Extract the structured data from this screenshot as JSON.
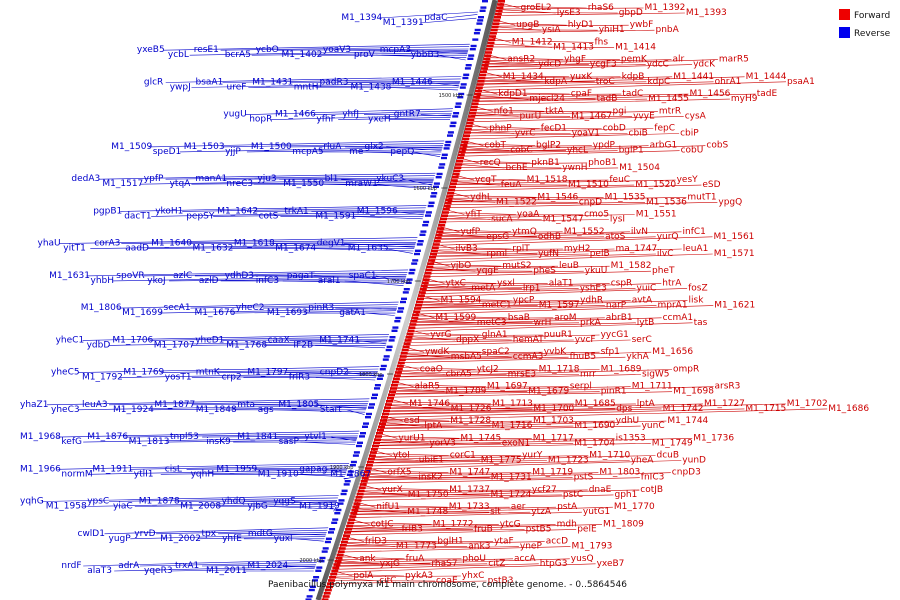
{
  "caption": "Paenibacillus polymyxa M1 main chromosome, complete genome. - 0..5864546",
  "legend": [
    {
      "label": "Forward",
      "color": "#ee0000"
    },
    {
      "label": "Reverse",
      "color": "#0000ee"
    }
  ],
  "scale_labels": [
    "1500 kbp",
    "1600 kbp",
    "1700 kbp",
    "1800 kbp",
    "1900 kbp",
    "2000 kbp"
  ],
  "forward_rows": [
    [
      "groEL2",
      "lysE3",
      "rhaS6",
      "gbpD",
      "M1_1392",
      "M1_1393"
    ],
    [
      "upgB",
      "ysiA",
      "hlyD1",
      "yhiH1",
      "ywbF",
      "pnbA"
    ],
    [
      "M1_1412",
      "M1_1413",
      "fhs",
      "M1_1414"
    ],
    [
      "ansR2",
      "ydcD",
      "yhgF",
      "ycgF3",
      "pemK",
      "ydcC",
      "alr",
      "ydcK",
      "marR5"
    ],
    [
      "M1_1434",
      "kdpA",
      "yuxK",
      "troC",
      "kdpB",
      "kdpC",
      "M1_1441",
      "ohrA1",
      "M1_1444",
      "psaA1"
    ],
    [
      "kdpD1",
      "mjecl24",
      "cpaF",
      "tadB",
      "tadC",
      "M1_1455",
      "M1_1456",
      "myH9",
      "tadE"
    ],
    [
      "nfo1",
      "purU",
      "tktA",
      "M1_1467",
      "pgi",
      "yvyE",
      "mtrR",
      "cysA"
    ],
    [
      "phnP",
      "yvrC",
      "fecD1",
      "yoaV1",
      "cobD",
      "cbiB",
      "fepC",
      "cbiP"
    ],
    [
      "cobT",
      "cobC",
      "bglP2",
      "yhcL",
      "ypdP",
      "bglP1",
      "arbG1",
      "cobU",
      "cobS"
    ],
    [
      "recQ",
      "bchE",
      "pknB1",
      "ywnH",
      "phoB1",
      "M1_1504"
    ],
    [
      "ycgT",
      "feuA",
      "M1_1518",
      "M1_1510",
      "feuC",
      "M1_1520",
      "yesY",
      "eSD"
    ],
    [
      "ydhL",
      "M1_1522",
      "M1_1546",
      "cnpD",
      "M1_1535",
      "M1_1536",
      "mutT1",
      "ypgQ"
    ],
    [
      "yfiT",
      "sucA",
      "yoaA",
      "M1_1547",
      "cmo5",
      "lysI",
      "M1_1551"
    ],
    [
      "yufP",
      "epsG",
      "ytmQ",
      "odhB",
      "M1_1552",
      "atoS",
      "ilvN",
      "yurQ",
      "infC1",
      "M1_1561"
    ],
    [
      "ilvB3",
      "rpml",
      "rplT",
      "yufN",
      "myH2",
      "pelB",
      "ma_1747",
      "ilvC",
      "leuA1",
      "M1_1571"
    ],
    [
      "yjbO",
      "yqgE",
      "mutS2",
      "pheS",
      "leuB",
      "ykuU",
      "M1_1582",
      "pheT"
    ],
    [
      "ytxC",
      "metA",
      "ysxl",
      "lrp1",
      "alaT1",
      "yshE3",
      "cspR",
      "yuiC",
      "htrA",
      "fosZ"
    ],
    [
      "M1_1594",
      "metC1",
      "ypcP",
      "M1_1597",
      "ydhR",
      "narP",
      "avtA",
      "mprA1",
      "lisk",
      "M1_1621"
    ],
    [
      "M1_1599",
      "metC3",
      "bsaB",
      "wrH",
      "aroM",
      "prkA",
      "abrB1",
      "lytB",
      "ccmA1",
      "tas"
    ],
    [
      "yvrG",
      "dppX",
      "glnA1",
      "hemAT",
      "puuR1",
      "yvcF",
      "yycG1",
      "serC"
    ],
    [
      "ywdK",
      "msbA5",
      "spaC2",
      "ccmA3",
      "yvbK",
      "fhuB5",
      "sfp1",
      "ykhA",
      "M1_1656"
    ],
    [
      "coaO",
      "cbrA5",
      "ytcJ2",
      "mrsE3",
      "M1_1718",
      "mrr",
      "M1_1689",
      "sigW5",
      "ompR"
    ],
    [
      "alaR5",
      "M1_1709",
      "M1_1697",
      "M1_1679",
      "serpl",
      "pinR1",
      "M1_1711",
      "M1_1698",
      "arsR3"
    ],
    [
      "M1_1746",
      "M1_1726",
      "M1_1713",
      "M1_1700",
      "M1_1685",
      "dps",
      "lptA",
      "M1_1742",
      "M1_1727",
      "M1_1715",
      "M1_1702",
      "M1_1686"
    ],
    [
      "esd",
      "lptA",
      "M1_1728",
      "M1_1716",
      "M1_1703",
      "M1_1690",
      "ydhU",
      "yunC",
      "M1_1744"
    ],
    [
      "yurU1",
      "yorV3",
      "M1_1745",
      "exoN1",
      "M1_1717",
      "M1_1704",
      "is1353",
      "M1_1749",
      "M1_1736"
    ],
    [
      "ytoI",
      "ubiE1",
      "corC1",
      "M1_1775",
      "yurY",
      "M1_1723",
      "M1_1710",
      "yheA",
      "dcuB",
      "yunD"
    ],
    [
      "orfX5",
      "insK2",
      "M1_1747",
      "M1_1731",
      "M1_1719",
      "pstS",
      "M1_1803",
      "fnIC3",
      "cnpD3"
    ],
    [
      "yurX",
      "M1_1750",
      "M1_1737",
      "M1_1724",
      "ycf27",
      "pstC",
      "dnaE",
      "gph1",
      "cotJB"
    ],
    [
      "nifU1",
      "M1_1748",
      "M1_1733",
      "slt",
      "aer",
      "ytzA",
      "pstA",
      "yutG1",
      "M1_1770"
    ],
    [
      "cotJC",
      "frlB3",
      "M1_1772",
      "fruB",
      "ytcG",
      "pstB5",
      "mdh",
      "pelE",
      "M1_1809"
    ],
    [
      "frlD3",
      "M1_1773",
      "bglH1",
      "ank3",
      "ytaF",
      "yneP",
      "accD",
      "M1_1793"
    ],
    [
      "ank",
      "yxjG",
      "fruA",
      "rhaS7",
      "phoU",
      "citZ",
      "accA",
      "htpG3",
      "yusQ",
      "yxeB7"
    ],
    [
      "polA",
      "citC",
      "pykA3",
      "coaE",
      "yhxC",
      "pstB3"
    ]
  ],
  "reverse_rows": [
    [
      "M1_1394",
      "M1_1391",
      "pdaC"
    ],
    [
      "yxeB5",
      "ycbL",
      "resE1",
      "bcrA5",
      "ycbO",
      "M1_1402",
      "yoaV3",
      "proV",
      "mcpA3",
      "ybbB3"
    ],
    [
      "glcR",
      "ywpJ",
      "bsaA1",
      "ureF",
      "M1_1431",
      "mntH",
      "padR3",
      "M1_1438",
      "M1_1446"
    ],
    [
      "yugU",
      "hopR",
      "M1_1466",
      "yfhF",
      "yhfJ",
      "yxeH",
      "gntR7"
    ],
    [
      "M1_1509",
      "speD1",
      "M1_1503",
      "yjjP",
      "M1_1500",
      "mcpA5",
      "rluA",
      "me",
      "glx2",
      "pepQ"
    ],
    [
      "dedA3",
      "M1_1517",
      "ypfP",
      "ytqA",
      "manA1",
      "nreC3",
      "yju3",
      "M1_1550",
      "bl1",
      "mraW1",
      "ykuC3"
    ],
    [
      "pgpB1",
      "dacT1",
      "ykoH1",
      "pepSY",
      "M1_1642",
      "cotS",
      "trkA1",
      "M1_1591",
      "M1_1596"
    ],
    [
      "yhaU",
      "yitT1",
      "corA3",
      "aadD",
      "M1_1640",
      "M1_1632",
      "M1_1618",
      "M1_1674",
      "degV1",
      "M1_1635"
    ],
    [
      "M1_1631",
      "yhbH",
      "spoVR",
      "ykoJ",
      "azlC",
      "azlD",
      "ydhD3",
      "infC3",
      "pagaT",
      "aral1",
      "spaC1"
    ],
    [
      "M1_1806",
      "M1_1699",
      "secA1",
      "M1_1676",
      "yheC2",
      "M1_1693",
      "pinR3",
      "gatA1"
    ],
    [
      "yheC1",
      "ydbD",
      "M1_1706",
      "M1_1707",
      "yheD1",
      "M1_1768",
      "caaX",
      "IF2B",
      "M1_1741"
    ],
    [
      "yheC5",
      "M1_1792",
      "M1_1769",
      "yosT1",
      "mtnK",
      "crp2",
      "M1_1797",
      "frlR3",
      "cnpD2"
    ],
    [
      "yhaZ1",
      "yheC3",
      "leuA3",
      "M1_1924",
      "M1_1877",
      "M1_1848",
      "mta",
      "ags",
      "M1_1805",
      "Start"
    ],
    [
      "M1_1968",
      "kefG",
      "M1_1876",
      "M1_1813",
      "tnpl53",
      "insK9",
      "M1_1841",
      "sasP",
      "ytvl1"
    ],
    [
      "M1_1966",
      "normM",
      "M1_1911",
      "ytlI1",
      "cisL",
      "yqhH",
      "M1_1959",
      "M1_1910",
      "gapag",
      "M1_1867"
    ],
    [
      "yqhG",
      "M1_1958",
      "ypsC",
      "yiaC",
      "M1_1878",
      "M1_2008",
      "yhdQ",
      "yjbG",
      "yqgS",
      "M1_1919"
    ],
    [
      "cwlD1",
      "yugP",
      "yrvD",
      "M1_2002",
      "tpx",
      "yhfE",
      "mdtG",
      "yuxl"
    ],
    [
      "nrdF",
      "alaT3",
      "adrA",
      "yqeR3",
      "trxA1",
      "M1_2011",
      "M1_2024"
    ]
  ]
}
